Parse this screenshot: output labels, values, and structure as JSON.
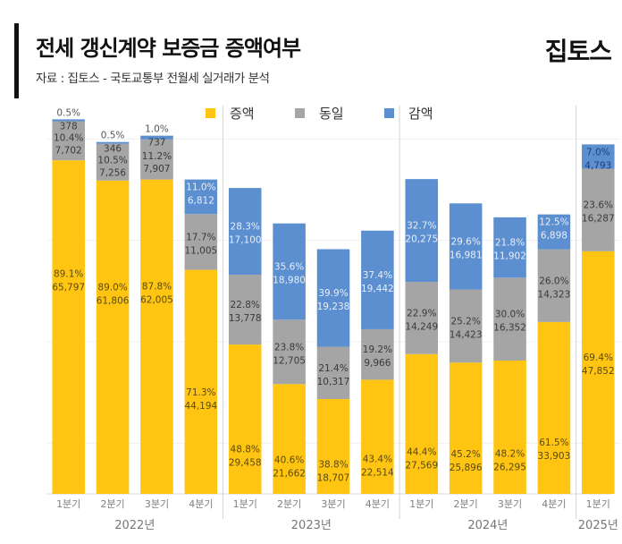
{
  "header": {
    "title": "전세 갱신계약 보증금 증액여부",
    "subtitle": "자료 : 집토스 - 국토교통부 전월세 실거래가 분석",
    "logo": "집토스"
  },
  "colors": {
    "increase": "#FFC512",
    "same": "#A5A5A5",
    "decrease": "#5B8FD0",
    "label_dark": "#3a3a3a",
    "label_light": "#e8eef8",
    "axis_text": "#7f7f7f"
  },
  "chart_data": {
    "type": "bar",
    "stacked": true,
    "title": "전세 갱신계약 보증금 증액여부",
    "xlabel": "",
    "ylabel": "",
    "legend": {
      "position": "top-center",
      "entries": [
        "증액",
        "동일",
        "감액"
      ]
    },
    "categories": [
      "1분기",
      "2분기",
      "3분기",
      "4분기",
      "1분기",
      "2분기",
      "3분기",
      "4분기",
      "1분기",
      "2분기",
      "3분기",
      "4분기",
      "1분기"
    ],
    "groups": [
      {
        "label": "2022년",
        "count": 4
      },
      {
        "label": "2023년",
        "count": 4
      },
      {
        "label": "2024년",
        "count": 4
      },
      {
        "label": "2025년",
        "count": 1
      }
    ],
    "series": [
      {
        "name": "증액",
        "key": "increase",
        "values": [
          65797,
          61806,
          62005,
          44194,
          29458,
          21662,
          18707,
          22514,
          27569,
          25896,
          26295,
          33903,
          47852
        ],
        "percents": [
          "89.1%",
          "89.0%",
          "87.8%",
          "71.3%",
          "48.8%",
          "40.6%",
          "38.8%",
          "43.4%",
          "44.4%",
          "45.2%",
          "48.2%",
          "61.5%",
          "69.4%"
        ]
      },
      {
        "name": "동일",
        "key": "same",
        "values": [
          7702,
          7256,
          7907,
          11005,
          13778,
          12705,
          10317,
          9966,
          14249,
          14423,
          16352,
          14323,
          16287
        ],
        "percents": [
          "10.4%",
          "10.5%",
          "11.2%",
          "17.7%",
          "22.8%",
          "23.8%",
          "21.4%",
          "19.2%",
          "22.9%",
          "25.2%",
          "30.0%",
          "26.0%",
          "23.6%"
        ]
      },
      {
        "name": "감액",
        "key": "decrease",
        "values": [
          378,
          346,
          737,
          6812,
          17100,
          18980,
          19238,
          19442,
          20275,
          16981,
          11902,
          6898,
          4793
        ],
        "percents": [
          "0.5%",
          "0.5%",
          "1.0%",
          "11.0%",
          "28.3%",
          "35.6%",
          "39.9%",
          "37.4%",
          "32.7%",
          "29.6%",
          "21.8%",
          "12.5%",
          "7.0%"
        ]
      }
    ],
    "ylim": [
      0,
      80000
    ],
    "grid": true
  }
}
